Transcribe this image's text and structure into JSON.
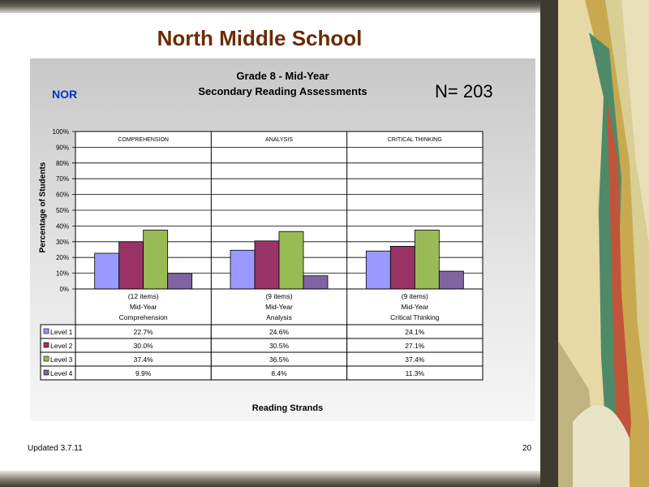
{
  "slide": {
    "title": "North Middle School",
    "footer_left": "Updated 3.7.11",
    "page_number": "20"
  },
  "chart_data": {
    "type": "bar",
    "title_line1": "Grade 8 - Mid-Year",
    "title_line2": "Secondary Reading Assessments",
    "school_code": "NOR",
    "n_label": "N= 203",
    "ylabel": "Percentage of Students",
    "xlabel": "Reading Strands",
    "ylim": [
      0,
      100
    ],
    "yticks": [
      "0%",
      "10%",
      "20%",
      "30%",
      "40%",
      "50%",
      "60%",
      "70%",
      "80%",
      "90%",
      "100%"
    ],
    "strands": [
      "COMPREHENSION",
      "ANALYSIS",
      "CRITICAL THINKING"
    ],
    "categories": [
      [
        "(12 items)",
        "Mid-Year",
        "Comprehension"
      ],
      [
        "(9 items)",
        "Mid-Year",
        "Analysis"
      ],
      [
        "(9 items)",
        "Mid-Year",
        "Critical Thinking"
      ]
    ],
    "series": [
      {
        "name": "Level 1",
        "color": "#9999ff",
        "values": [
          22.7,
          24.6,
          24.1
        ],
        "labels": [
          "22.7%",
          "24.6%",
          "24.1%"
        ]
      },
      {
        "name": "Level 2",
        "color": "#993366",
        "values": [
          30.0,
          30.5,
          27.1
        ],
        "labels": [
          "30.0%",
          "30.5%",
          "27.1%"
        ]
      },
      {
        "name": "Level 3",
        "color": "#99bb55",
        "values": [
          37.4,
          36.5,
          37.4
        ],
        "labels": [
          "37.4%",
          "36.5%",
          "37.4%"
        ]
      },
      {
        "name": "Level 4",
        "color": "#8064a2",
        "values": [
          9.9,
          8.4,
          11.3
        ],
        "labels": [
          "9.9%",
          "8.4%",
          "11.3%"
        ]
      }
    ]
  }
}
